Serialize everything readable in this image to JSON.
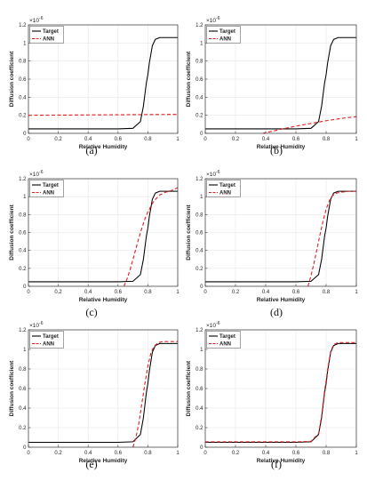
{
  "chart_data": [
    {
      "type": "line",
      "caption": "(a)",
      "xlabel": "Relative Humidity",
      "ylabel": "Diffusion coefficient",
      "y_exponent": "-6",
      "xlim": [
        0,
        1
      ],
      "ylim": [
        0,
        1.2
      ],
      "xticks": [
        "0",
        "0.2",
        "0.4",
        "0.6",
        "0.8",
        "1"
      ],
      "yticks": [
        "0",
        "0.2",
        "0.4",
        "0.6",
        "0.8",
        "1",
        "1.2"
      ],
      "grid": true,
      "legend_position": "top-left",
      "series": [
        {
          "name": "Target",
          "color": "#000000",
          "style": "solid",
          "x": [
            0,
            0.2,
            0.4,
            0.6,
            0.7,
            0.75,
            0.77,
            0.79,
            0.8,
            0.81,
            0.83,
            0.85,
            0.88,
            0.9,
            1.0
          ],
          "y": [
            0.05,
            0.05,
            0.05,
            0.05,
            0.056,
            0.13,
            0.3,
            0.56,
            0.65,
            0.78,
            0.97,
            1.04,
            1.06,
            1.06,
            1.06
          ]
        },
        {
          "name": "ANN",
          "color": "#e02020",
          "style": "dashed",
          "x": [
            0,
            1.0
          ],
          "y": [
            0.2,
            0.21
          ]
        }
      ]
    },
    {
      "type": "line",
      "caption": "(b)",
      "xlabel": "Relative Humidity",
      "ylabel": "Diffusion coefficient",
      "y_exponent": "-6",
      "xlim": [
        0,
        1
      ],
      "ylim": [
        0,
        1.2
      ],
      "xticks": [
        "0",
        "0.2",
        "0.4",
        "0.6",
        "0.8",
        "1"
      ],
      "yticks": [
        "0",
        "0.2",
        "0.4",
        "0.6",
        "0.8",
        "1",
        "1.2"
      ],
      "grid": true,
      "legend_position": "top-left",
      "series": [
        {
          "name": "Target",
          "color": "#000000",
          "style": "solid",
          "x": [
            0,
            0.2,
            0.4,
            0.6,
            0.7,
            0.75,
            0.77,
            0.79,
            0.8,
            0.81,
            0.83,
            0.85,
            0.88,
            0.9,
            1.0
          ],
          "y": [
            0.05,
            0.05,
            0.05,
            0.05,
            0.056,
            0.13,
            0.3,
            0.56,
            0.65,
            0.78,
            0.97,
            1.04,
            1.06,
            1.06,
            1.06
          ]
        },
        {
          "name": "ANN",
          "color": "#e02020",
          "style": "dashed",
          "x": [
            0.38,
            0.5,
            0.6,
            0.7,
            0.8,
            0.9,
            1.0
          ],
          "y": [
            0.0,
            0.045,
            0.08,
            0.11,
            0.14,
            0.165,
            0.185
          ]
        }
      ]
    },
    {
      "type": "line",
      "caption": "(c)",
      "xlabel": "Relative Humidity",
      "ylabel": "Diffusion coefficient",
      "y_exponent": "-6",
      "xlim": [
        0,
        1
      ],
      "ylim": [
        0,
        1.2
      ],
      "xticks": [
        "0",
        "0.2",
        "0.4",
        "0.6",
        "0.8",
        "1"
      ],
      "yticks": [
        "0",
        "0.2",
        "0.4",
        "0.6",
        "0.8",
        "1",
        "1.2"
      ],
      "grid": true,
      "legend_position": "top-left",
      "series": [
        {
          "name": "Target",
          "color": "#000000",
          "style": "solid",
          "x": [
            0,
            0.2,
            0.4,
            0.6,
            0.7,
            0.75,
            0.77,
            0.79,
            0.8,
            0.81,
            0.83,
            0.85,
            0.88,
            0.9,
            1.0
          ],
          "y": [
            0.05,
            0.05,
            0.05,
            0.05,
            0.056,
            0.13,
            0.3,
            0.56,
            0.65,
            0.78,
            0.97,
            1.04,
            1.06,
            1.06,
            1.06
          ]
        },
        {
          "name": "ANN",
          "color": "#e02020",
          "style": "dashed",
          "x": [
            0.64,
            0.66,
            0.68,
            0.7,
            0.72,
            0.74,
            0.76,
            0.78,
            0.8,
            0.84,
            0.88,
            0.92,
            0.96,
            1.0
          ],
          "y": [
            0.0,
            0.08,
            0.18,
            0.3,
            0.42,
            0.54,
            0.65,
            0.75,
            0.83,
            0.95,
            1.02,
            1.05,
            1.07,
            1.1
          ]
        }
      ]
    },
    {
      "type": "line",
      "caption": "(d)",
      "xlabel": "Relative Humidity",
      "ylabel": "Diffusion coefficient",
      "y_exponent": "-6",
      "xlim": [
        0,
        1
      ],
      "ylim": [
        0,
        1.2
      ],
      "xticks": [
        "0",
        "0.2",
        "0.4",
        "0.6",
        "0.8",
        "1"
      ],
      "yticks": [
        "0",
        "0.2",
        "0.4",
        "0.6",
        "0.8",
        "1",
        "1.2"
      ],
      "grid": true,
      "legend_position": "top-left",
      "series": [
        {
          "name": "Target",
          "color": "#000000",
          "style": "solid",
          "x": [
            0,
            0.2,
            0.4,
            0.6,
            0.7,
            0.75,
            0.77,
            0.79,
            0.8,
            0.81,
            0.83,
            0.85,
            0.88,
            0.9,
            1.0
          ],
          "y": [
            0.05,
            0.05,
            0.05,
            0.05,
            0.056,
            0.13,
            0.3,
            0.56,
            0.65,
            0.78,
            0.97,
            1.04,
            1.06,
            1.06,
            1.06
          ]
        },
        {
          "name": "ANN",
          "color": "#e02020",
          "style": "dashed",
          "x": [
            0.68,
            0.7,
            0.72,
            0.74,
            0.76,
            0.78,
            0.8,
            0.82,
            0.84,
            0.87,
            0.9,
            0.95,
            1.0
          ],
          "y": [
            0.0,
            0.12,
            0.26,
            0.42,
            0.58,
            0.73,
            0.86,
            0.95,
            1.01,
            1.04,
            1.05,
            1.06,
            1.06
          ]
        }
      ]
    },
    {
      "type": "line",
      "caption": "(e)",
      "xlabel": "Relative Humidity",
      "ylabel": "Diffusion coefficient",
      "y_exponent": "-6",
      "xlim": [
        0,
        1
      ],
      "ylim": [
        0,
        1.2
      ],
      "xticks": [
        "0",
        "0.2",
        "0.4",
        "0.6",
        "0.8",
        "1"
      ],
      "yticks": [
        "0",
        "0.2",
        "0.4",
        "0.6",
        "0.8",
        "1",
        "1.2"
      ],
      "grid": true,
      "legend_position": "top-left",
      "series": [
        {
          "name": "Target",
          "color": "#000000",
          "style": "solid",
          "x": [
            0,
            0.2,
            0.4,
            0.6,
            0.7,
            0.75,
            0.77,
            0.79,
            0.8,
            0.81,
            0.83,
            0.85,
            0.88,
            0.9,
            1.0
          ],
          "y": [
            0.05,
            0.05,
            0.05,
            0.05,
            0.056,
            0.13,
            0.3,
            0.56,
            0.65,
            0.78,
            0.97,
            1.04,
            1.06,
            1.06,
            1.06
          ]
        },
        {
          "name": "ANN",
          "color": "#e02020",
          "style": "dashed",
          "x": [
            0.7,
            0.72,
            0.74,
            0.76,
            0.78,
            0.8,
            0.82,
            0.84,
            0.87,
            0.9,
            0.95,
            1.0
          ],
          "y": [
            0.0,
            0.1,
            0.25,
            0.45,
            0.65,
            0.83,
            0.96,
            1.03,
            1.07,
            1.08,
            1.08,
            1.08
          ]
        }
      ]
    },
    {
      "type": "line",
      "caption": "(f)",
      "xlabel": "Relative Humidity",
      "ylabel": "Diffusion coefficient",
      "y_exponent": "-6",
      "xlim": [
        0,
        1
      ],
      "ylim": [
        0,
        1.2
      ],
      "xticks": [
        "0",
        "0.2",
        "0.4",
        "0.6",
        "0.8",
        "1"
      ],
      "yticks": [
        "0",
        "0.2",
        "0.4",
        "0.6",
        "0.8",
        "1",
        "1.2"
      ],
      "grid": true,
      "legend_position": "top-left",
      "series": [
        {
          "name": "Target",
          "color": "#000000",
          "style": "solid",
          "x": [
            0,
            0.2,
            0.4,
            0.6,
            0.7,
            0.75,
            0.77,
            0.79,
            0.8,
            0.81,
            0.83,
            0.85,
            0.88,
            0.9,
            1.0
          ],
          "y": [
            0.05,
            0.05,
            0.05,
            0.05,
            0.056,
            0.13,
            0.3,
            0.56,
            0.65,
            0.78,
            0.97,
            1.04,
            1.06,
            1.06,
            1.06
          ]
        },
        {
          "name": "ANN",
          "color": "#e02020",
          "style": "dashed",
          "x": [
            0,
            0.2,
            0.4,
            0.6,
            0.7,
            0.75,
            0.77,
            0.79,
            0.8,
            0.81,
            0.83,
            0.85,
            0.88,
            0.9,
            1.0
          ],
          "y": [
            0.055,
            0.055,
            0.055,
            0.055,
            0.06,
            0.14,
            0.32,
            0.58,
            0.68,
            0.8,
            0.98,
            1.05,
            1.07,
            1.07,
            1.07
          ]
        }
      ]
    }
  ]
}
